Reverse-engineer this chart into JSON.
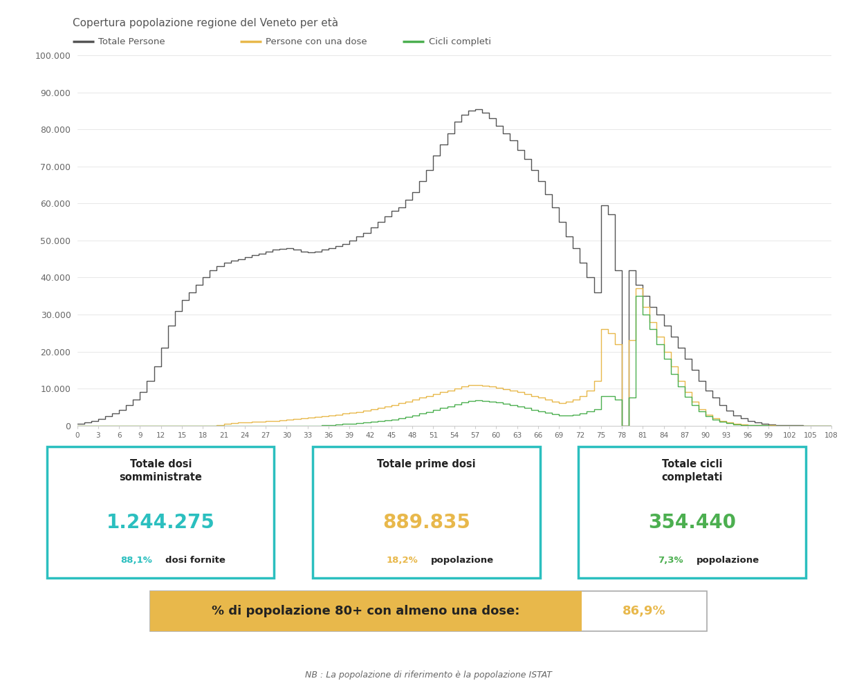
{
  "title": "Copertura popolazione regione del Veneto per età",
  "legend": [
    "Totale Persone",
    "Persone con una dose",
    "Cicli completi"
  ],
  "colors": {
    "totale": "#555555",
    "dose": "#E8B84B",
    "cicli": "#4CAF50"
  },
  "yticks": [
    0,
    10000,
    20000,
    30000,
    40000,
    50000,
    60000,
    70000,
    80000,
    90000,
    100000
  ],
  "ytick_labels": [
    "0",
    "10.000",
    "20.000",
    "30.000",
    "40.000",
    "50.000",
    "60.000",
    "70.000",
    "80.000",
    "90.000",
    "100.000"
  ],
  "xticks": [
    0,
    3,
    6,
    9,
    12,
    15,
    18,
    21,
    24,
    27,
    30,
    33,
    36,
    39,
    42,
    45,
    48,
    51,
    54,
    57,
    60,
    63,
    66,
    69,
    72,
    75,
    78,
    81,
    84,
    87,
    90,
    93,
    96,
    99,
    102,
    105,
    108
  ],
  "box1": {
    "title": "Totale dosi\nsomministrate",
    "value": "1.244.275",
    "value_color": "#2BBFBF",
    "pct": "88,1%",
    "pct_color": "#2BBFBF",
    "sub": "dosi fornite",
    "border_color": "#2BBFBF"
  },
  "box2": {
    "title": "Totale prime dosi",
    "value": "889.835",
    "value_color": "#E8B84B",
    "pct": "18,2%",
    "pct_color": "#E8B84B",
    "sub": "popolazione",
    "border_color": "#2BBFBF"
  },
  "box3": {
    "title": "Totale cicli\ncompletati",
    "value": "354.440",
    "value_color": "#4CAF50",
    "pct": "7,3%",
    "pct_color": "#4CAF50",
    "sub": "popolazione",
    "border_color": "#2BBFBF"
  },
  "bottom_box": {
    "text": "% di popolazione 80+ con almeno una dose:",
    "value": "86,9%",
    "value_color": "#E8B84B",
    "bg_color": "#E8B84B",
    "border_color": "#888888"
  },
  "footnote": "NB : La popolazione di riferimento è la popolazione ISTAT",
  "background_color": "#FFFFFF",
  "totale": [
    500,
    800,
    1200,
    1800,
    2500,
    3200,
    4200,
    5500,
    7000,
    9000,
    12000,
    16000,
    21000,
    27000,
    31000,
    34000,
    36000,
    38000,
    40000,
    42000,
    43000,
    44000,
    44500,
    45000,
    45500,
    46000,
    46500,
    47000,
    47500,
    47800,
    48000,
    47500,
    47000,
    46800,
    47000,
    47500,
    48000,
    48500,
    49000,
    50000,
    51000,
    52000,
    53500,
    55000,
    56500,
    58000,
    59000,
    61000,
    63000,
    66000,
    69000,
    73000,
    76000,
    79000,
    82000,
    84000,
    85000,
    85500,
    84500,
    83000,
    81000,
    79000,
    77000,
    74500,
    72000,
    69000,
    66000,
    62500,
    59000,
    55000,
    51000,
    48000,
    44000,
    40000,
    36000,
    59500,
    57000,
    42000,
    0,
    42000,
    38000,
    35000,
    32000,
    30000,
    27000,
    24000,
    21000,
    18000,
    15000,
    12000,
    9500,
    7500,
    5500,
    4000,
    2800,
    1900,
    1200,
    800,
    500,
    300,
    180,
    100,
    60,
    35,
    20,
    10,
    5,
    2,
    1
  ],
  "dose": [
    0,
    0,
    0,
    0,
    0,
    0,
    0,
    0,
    0,
    0,
    0,
    0,
    0,
    0,
    0,
    0,
    0,
    0,
    0,
    0,
    200,
    400,
    600,
    800,
    900,
    1000,
    1100,
    1200,
    1300,
    1400,
    1600,
    1800,
    2000,
    2200,
    2400,
    2600,
    2800,
    3000,
    3200,
    3400,
    3600,
    4000,
    4400,
    4800,
    5200,
    5600,
    6000,
    6500,
    7000,
    7500,
    8000,
    8500,
    9000,
    9500,
    10000,
    10500,
    11000,
    11000,
    10800,
    10500,
    10200,
    9800,
    9400,
    9000,
    8500,
    8000,
    7500,
    7000,
    6500,
    6000,
    6500,
    7000,
    8000,
    9500,
    12000,
    26000,
    25000,
    22000,
    0,
    23000,
    37000,
    32000,
    28000,
    24000,
    20000,
    16000,
    12000,
    9000,
    6500,
    4500,
    3000,
    2000,
    1300,
    800,
    450,
    250,
    140,
    80,
    45,
    25,
    14,
    8,
    5,
    3,
    2,
    1,
    0,
    0,
    0
  ],
  "cicli": [
    0,
    0,
    0,
    0,
    0,
    0,
    0,
    0,
    0,
    0,
    0,
    0,
    0,
    0,
    0,
    0,
    0,
    0,
    0,
    0,
    0,
    0,
    0,
    0,
    0,
    0,
    0,
    0,
    0,
    0,
    0,
    0,
    0,
    0,
    0,
    100,
    200,
    300,
    400,
    500,
    600,
    800,
    1000,
    1200,
    1400,
    1700,
    2000,
    2300,
    2700,
    3200,
    3700,
    4200,
    4700,
    5200,
    5700,
    6200,
    6700,
    6800,
    6700,
    6500,
    6200,
    5900,
    5500,
    5100,
    4700,
    4300,
    3900,
    3500,
    3100,
    2700,
    2800,
    3000,
    3300,
    3800,
    4500,
    8000,
    8000,
    7000,
    0,
    7500,
    35000,
    30000,
    26000,
    22000,
    18000,
    14000,
    10500,
    7800,
    5500,
    3800,
    2500,
    1600,
    1000,
    600,
    330,
    180,
    100,
    55,
    30,
    16,
    9,
    5,
    3,
    2,
    1,
    0,
    0,
    0,
    0
  ]
}
